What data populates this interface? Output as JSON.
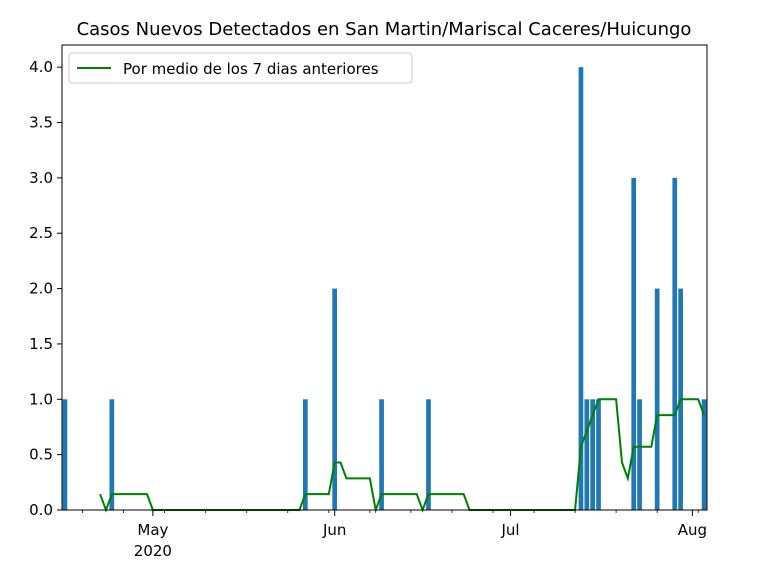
{
  "chart_data": {
    "type": "bar",
    "title": "Casos Nuevos Detectados en San Martin/Mariscal Caceres/Huicungo",
    "xlabel": "",
    "ylabel": "",
    "x_axis": {
      "kind": "date",
      "range": [
        "2020-04-16",
        "2020-08-03"
      ],
      "major_ticks": [
        {
          "date": "2020-05-01",
          "label": "May",
          "sublabel": "2020"
        },
        {
          "date": "2020-06-01",
          "label": "Jun",
          "sublabel": ""
        },
        {
          "date": "2020-07-01",
          "label": "Jul",
          "sublabel": ""
        },
        {
          "date": "2020-08-01",
          "label": "Aug",
          "sublabel": ""
        }
      ],
      "minor_tick_every_days": 7,
      "minor_tick_start": "2020-04-19"
    },
    "y_axis": {
      "ylim": [
        0,
        4.2
      ],
      "ticks": [
        0,
        0.5,
        1,
        1.5,
        2,
        2.5,
        3,
        3.5,
        4
      ],
      "tick_labels": [
        "0.0",
        "0.5",
        "1.0",
        "1.5",
        "2.0",
        "2.5",
        "3.0",
        "3.5",
        "4.0"
      ]
    },
    "grid": false,
    "legend": {
      "placement": "top-left"
    },
    "colors": {
      "bars": "#1f77b4",
      "average_line": "#008000"
    },
    "series": [
      {
        "type": "bar",
        "points": [
          {
            "x": "2020-04-16",
            "y": 1
          },
          {
            "x": "2020-04-24",
            "y": 1
          },
          {
            "x": "2020-05-27",
            "y": 1
          },
          {
            "x": "2020-06-01",
            "y": 2
          },
          {
            "x": "2020-06-09",
            "y": 1
          },
          {
            "x": "2020-06-17",
            "y": 1
          },
          {
            "x": "2020-07-13",
            "y": 4
          },
          {
            "x": "2020-07-14",
            "y": 1
          },
          {
            "x": "2020-07-15",
            "y": 1
          },
          {
            "x": "2020-07-16",
            "y": 1
          },
          {
            "x": "2020-07-22",
            "y": 3
          },
          {
            "x": "2020-07-23",
            "y": 1
          },
          {
            "x": "2020-07-26",
            "y": 2
          },
          {
            "x": "2020-07-29",
            "y": 3
          },
          {
            "x": "2020-07-30",
            "y": 2
          },
          {
            "x": "2020-08-03",
            "y": 1
          }
        ]
      },
      {
        "type": "line",
        "name": "Por medio de los 7 dias anteriores",
        "points": [
          {
            "x": "2020-04-22",
            "y": 0.143
          },
          {
            "x": "2020-04-23",
            "y": 0.0
          },
          {
            "x": "2020-04-24",
            "y": 0.143
          },
          {
            "x": "2020-04-30",
            "y": 0.143
          },
          {
            "x": "2020-05-01",
            "y": 0.0
          },
          {
            "x": "2020-05-26",
            "y": 0.0
          },
          {
            "x": "2020-05-27",
            "y": 0.143
          },
          {
            "x": "2020-05-31",
            "y": 0.143
          },
          {
            "x": "2020-06-01",
            "y": 0.429
          },
          {
            "x": "2020-06-02",
            "y": 0.429
          },
          {
            "x": "2020-06-03",
            "y": 0.286
          },
          {
            "x": "2020-06-07",
            "y": 0.286
          },
          {
            "x": "2020-06-08",
            "y": 0.0
          },
          {
            "x": "2020-06-09",
            "y": 0.143
          },
          {
            "x": "2020-06-15",
            "y": 0.143
          },
          {
            "x": "2020-06-16",
            "y": 0.0
          },
          {
            "x": "2020-06-17",
            "y": 0.143
          },
          {
            "x": "2020-06-23",
            "y": 0.143
          },
          {
            "x": "2020-06-24",
            "y": 0.0
          },
          {
            "x": "2020-07-12",
            "y": 0.0
          },
          {
            "x": "2020-07-13",
            "y": 0.571
          },
          {
            "x": "2020-07-14",
            "y": 0.714
          },
          {
            "x": "2020-07-15",
            "y": 0.857
          },
          {
            "x": "2020-07-16",
            "y": 1.0
          },
          {
            "x": "2020-07-19",
            "y": 1.0
          },
          {
            "x": "2020-07-20",
            "y": 0.429
          },
          {
            "x": "2020-07-21",
            "y": 0.286
          },
          {
            "x": "2020-07-22",
            "y": 0.571
          },
          {
            "x": "2020-07-25",
            "y": 0.571
          },
          {
            "x": "2020-07-26",
            "y": 0.857
          },
          {
            "x": "2020-07-29",
            "y": 0.857
          },
          {
            "x": "2020-07-30",
            "y": 1.0
          },
          {
            "x": "2020-08-02",
            "y": 1.0
          },
          {
            "x": "2020-08-03",
            "y": 0.857
          }
        ]
      }
    ]
  }
}
